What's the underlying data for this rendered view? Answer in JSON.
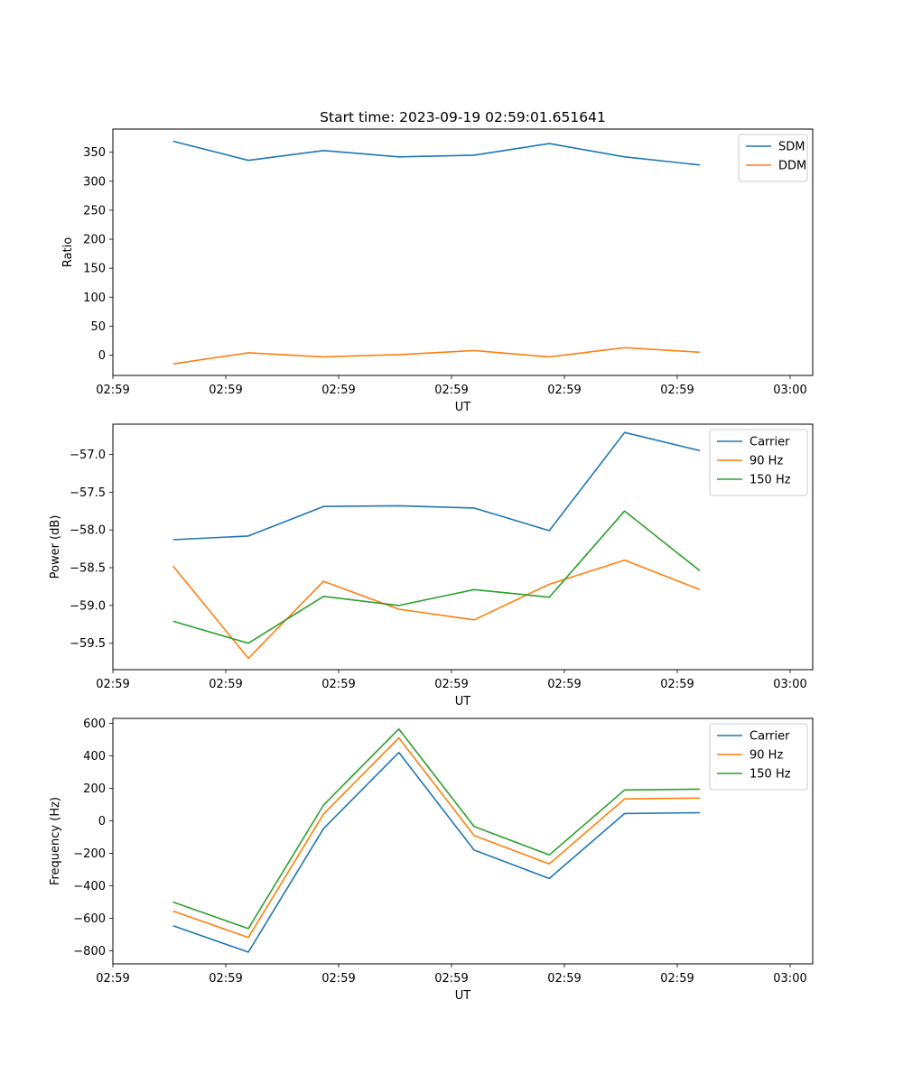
{
  "figure_title": "Start time: 2023-09-19 02:59:01.651641",
  "colors": {
    "blue": "#1f77b4",
    "orange": "#ff7f0e",
    "green": "#2ca02c"
  },
  "chart_data": [
    {
      "type": "line",
      "title": "Start time: 2023-09-19 02:59:01.651641",
      "xlabel": "UT",
      "ylabel": "Ratio",
      "x": [
        1,
        2,
        3,
        4,
        5,
        6,
        7,
        8
      ],
      "xlim": [
        0.2,
        9.5
      ],
      "xticks": [
        0.2,
        1.7,
        3.2,
        4.7,
        6.2,
        7.7,
        9.2
      ],
      "xtick_labels": [
        "02:59",
        "02:59",
        "02:59",
        "02:59",
        "02:59",
        "02:59",
        "03:00"
      ],
      "ylim": [
        -35,
        390
      ],
      "yticks": [
        0,
        50,
        100,
        150,
        200,
        250,
        300,
        350
      ],
      "ytick_labels": [
        "0",
        "50",
        "100",
        "150",
        "200",
        "250",
        "300",
        "350"
      ],
      "legend": "top-right",
      "series": [
        {
          "name": "SDM",
          "color": "#1f77b4",
          "values": [
            369,
            336,
            353,
            342,
            345,
            365,
            342,
            328
          ]
        },
        {
          "name": "DDM",
          "color": "#ff7f0e",
          "values": [
            -15,
            4,
            -3,
            1,
            8,
            -3,
            13,
            5
          ]
        }
      ]
    },
    {
      "type": "line",
      "title": "",
      "xlabel": "UT",
      "ylabel": "Power (dB)",
      "x": [
        1,
        2,
        3,
        4,
        5,
        6,
        7,
        8
      ],
      "xlim": [
        0.2,
        9.5
      ],
      "xticks": [
        0.2,
        1.7,
        3.2,
        4.7,
        6.2,
        7.7,
        9.2
      ],
      "xtick_labels": [
        "02:59",
        "02:59",
        "02:59",
        "02:59",
        "02:59",
        "02:59",
        "03:00"
      ],
      "ylim": [
        -59.85,
        -56.6
      ],
      "yticks": [
        -59.5,
        -59.0,
        -58.5,
        -58.0,
        -57.5,
        -57.0
      ],
      "ytick_labels": [
        "−59.5",
        "−59.0",
        "−58.5",
        "−58.0",
        "−57.5",
        "−57.0"
      ],
      "legend": "top-right",
      "series": [
        {
          "name": "Carrier",
          "color": "#1f77b4",
          "values": [
            -58.13,
            -58.08,
            -57.69,
            -57.68,
            -57.71,
            -58.01,
            -56.71,
            -56.95
          ]
        },
        {
          "name": "90 Hz",
          "color": "#ff7f0e",
          "values": [
            -58.48,
            -59.7,
            -58.68,
            -59.05,
            -59.19,
            -58.72,
            -58.4,
            -58.79
          ]
        },
        {
          "name": "150 Hz",
          "color": "#2ca02c",
          "values": [
            -59.21,
            -59.5,
            -58.88,
            -59.0,
            -58.79,
            -58.89,
            -57.75,
            -58.54
          ]
        }
      ]
    },
    {
      "type": "line",
      "title": "",
      "xlabel": "UT",
      "ylabel": "Frequency (Hz)",
      "x": [
        1,
        2,
        3,
        4,
        5,
        6,
        7,
        8
      ],
      "xlim": [
        0.2,
        9.5
      ],
      "xticks": [
        0.2,
        1.7,
        3.2,
        4.7,
        6.2,
        7.7,
        9.2
      ],
      "xtick_labels": [
        "02:59",
        "02:59",
        "02:59",
        "02:59",
        "02:59",
        "02:59",
        "03:00"
      ],
      "ylim": [
        -880,
        630
      ],
      "yticks": [
        -800,
        -600,
        -400,
        -200,
        0,
        200,
        400,
        600
      ],
      "ytick_labels": [
        "−800",
        "−600",
        "−400",
        "−200",
        "0",
        "200",
        "400",
        "600"
      ],
      "legend": "top-right",
      "series": [
        {
          "name": "Carrier",
          "color": "#1f77b4",
          "values": [
            -645,
            -808,
            -48,
            420,
            -180,
            -355,
            45,
            50
          ]
        },
        {
          "name": "90 Hz",
          "color": "#ff7f0e",
          "values": [
            -555,
            -718,
            42,
            510,
            -90,
            -265,
            135,
            140
          ]
        },
        {
          "name": "150 Hz",
          "color": "#2ca02c",
          "values": [
            -500,
            -663,
            97,
            565,
            -35,
            -210,
            190,
            195
          ]
        }
      ]
    }
  ]
}
